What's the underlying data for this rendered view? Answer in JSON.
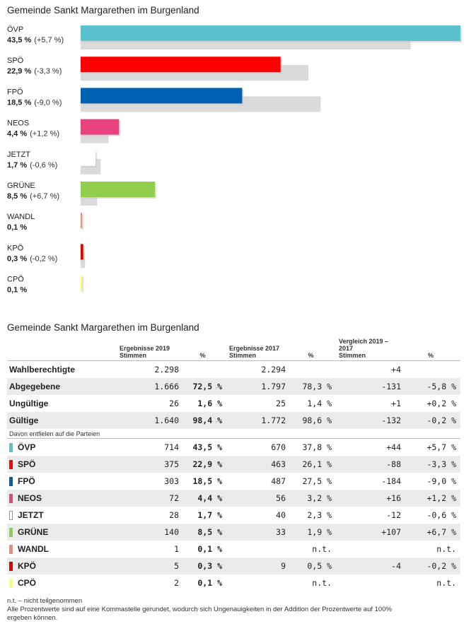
{
  "chart_title": "Gemeinde Sankt Margarethen im Burgenland",
  "table_title": "Gemeinde Sankt Margarethen im Burgenland",
  "chart_data": {
    "type": "bar",
    "title": "Gemeinde Sankt Margarethen im Burgenland",
    "categories": [
      "ÖVP",
      "SPÖ",
      "FPÖ",
      "NEOS",
      "JETZT",
      "GRÜNE",
      "WANDL",
      "KPÖ",
      "CPÖ"
    ],
    "series": [
      {
        "values": [
          43.5,
          22.9,
          18.5,
          4.4,
          1.7,
          8.5,
          0.1,
          0.3,
          0.1
        ]
      },
      {
        "values": [
          37.8,
          26.1,
          27.5,
          3.2,
          2.3,
          1.9,
          null,
          0.5,
          null
        ]
      }
    ],
    "value_labels": [
      "43,5 %",
      "22,9 %",
      "18,5 %",
      "4,4 %",
      "1,7 %",
      "8,5 %",
      "0,1 %",
      "0,3 %",
      "0,1 %"
    ],
    "change_labels": [
      "(+5,7 %)",
      "(-3,3 %)",
      "(-9,0 %)",
      "(+1,2 %)",
      "(-0,6 %)",
      "(+6,7 %)",
      "",
      "(-0,2 %)",
      ""
    ],
    "colors": [
      "#5cc1cf",
      "#ff0000",
      "#0060b2",
      "#e8437f",
      "#ffffff",
      "#8fcf4c",
      "#f08a78",
      "#dd0000",
      "#ffff66"
    ],
    "shadow_color": "#dadada",
    "xlim": [
      0,
      43.5
    ]
  },
  "table": {
    "headers": {
      "group2019": "Ergebnisse 2019",
      "group2017": "Ergebnisse 2017",
      "groupcmp": "Vergleich 2019 – 2017",
      "stimmen": "Stimmen",
      "pct": "%"
    },
    "summary_rows": [
      {
        "label": "Wahlberechtigte",
        "v2019": "2.298",
        "p2019": "",
        "v2017": "2.294",
        "p2017": "",
        "dv": "+4",
        "dp": ""
      },
      {
        "label": "Abgegebene",
        "v2019": "1.666",
        "p2019": "72,5 %",
        "v2017": "1.797",
        "p2017": "78,3 %",
        "dv": "-131",
        "dp": "-5,8 %"
      },
      {
        "label": "Ungültige",
        "v2019": "26",
        "p2019": "1,6 %",
        "v2017": "25",
        "p2017": "1,4 %",
        "dv": "+1",
        "dp": "+0,2 %"
      },
      {
        "label": "Gültige",
        "v2019": "1.640",
        "p2019": "98,4 %",
        "v2017": "1.772",
        "p2017": "98,6 %",
        "dv": "-132",
        "dp": "-0,2 %"
      }
    ],
    "subheading": "Davon entfielen auf die Parteien",
    "party_rows": [
      {
        "label": "ÖVP",
        "color": "#5cc1cf",
        "v2019": "714",
        "p2019": "43,5 %",
        "v2017": "670",
        "p2017": "37,8 %",
        "dv": "+44",
        "dp": "+5,7 %"
      },
      {
        "label": "SPÖ",
        "color": "#ff0000",
        "v2019": "375",
        "p2019": "22,9 %",
        "v2017": "463",
        "p2017": "26,1 %",
        "dv": "-88",
        "dp": "-3,3 %"
      },
      {
        "label": "FPÖ",
        "color": "#0060b2",
        "v2019": "303",
        "p2019": "18,5 %",
        "v2017": "487",
        "p2017": "27,5 %",
        "dv": "-184",
        "dp": "-9,0 %"
      },
      {
        "label": "NEOS",
        "color": "#e8437f",
        "v2019": "72",
        "p2019": "4,4 %",
        "v2017": "56",
        "p2017": "3,2 %",
        "dv": "+16",
        "dp": "+1,2 %"
      },
      {
        "label": "JETZT",
        "color": "#ffffff",
        "v2019": "28",
        "p2019": "1,7 %",
        "v2017": "40",
        "p2017": "2,3 %",
        "dv": "-12",
        "dp": "-0,6 %"
      },
      {
        "label": "GRÜNE",
        "color": "#8fcf4c",
        "v2019": "140",
        "p2019": "8,5 %",
        "v2017": "33",
        "p2017": "1,9 %",
        "dv": "+107",
        "dp": "+6,7 %"
      },
      {
        "label": "WANDL",
        "color": "#f08a78",
        "v2019": "1",
        "p2019": "0,1 %",
        "v2017": "",
        "p2017": "n.t.",
        "dv": "",
        "dp": "n.t."
      },
      {
        "label": "KPÖ",
        "color": "#dd0000",
        "v2019": "5",
        "p2019": "0,3 %",
        "v2017": "9",
        "p2017": "0,5 %",
        "dv": "-4",
        "dp": "-0,2 %"
      },
      {
        "label": "CPÖ",
        "color": "#ffff66",
        "v2019": "2",
        "p2019": "0,1 %",
        "v2017": "",
        "p2017": "n.t.",
        "dv": "",
        "dp": "n.t."
      }
    ]
  },
  "footnotes": {
    "nt": "n.t. – nicht teilgenommen",
    "rounding_1": "Alle Prozentwerte sind auf eine Kommastelle gerundet, wodurch sich Ungenauigkeiten in der Addition der Prozentwerte auf 100%",
    "rounding_2": "ergeben können."
  }
}
